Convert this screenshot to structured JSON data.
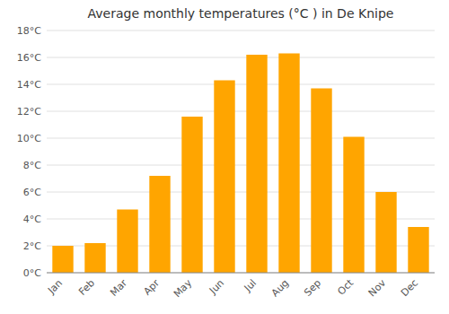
{
  "chart_data": {
    "type": "bar",
    "title": "Average monthly temperatures (°C ) in De Knipe",
    "categories": [
      "Jan",
      "Feb",
      "Mar",
      "Apr",
      "May",
      "Jun",
      "Jul",
      "Aug",
      "Sep",
      "Oct",
      "Nov",
      "Dec"
    ],
    "values": [
      2.0,
      2.2,
      4.7,
      7.2,
      11.6,
      14.3,
      16.2,
      16.3,
      13.7,
      10.1,
      6.0,
      3.4
    ],
    "color": "#FFA500",
    "ylim": [
      0,
      18
    ],
    "yticks": [
      {
        "value": 0,
        "label": "0°C"
      },
      {
        "value": 2,
        "label": "2°C"
      },
      {
        "value": 4,
        "label": "4°C"
      },
      {
        "value": 6,
        "label": "6°C"
      },
      {
        "value": 8,
        "label": "8°C"
      },
      {
        "value": 10,
        "label": "10°C"
      },
      {
        "value": 12,
        "label": "12°C"
      },
      {
        "value": 14,
        "label": "14°C"
      },
      {
        "value": 16,
        "label": "16°C"
      },
      {
        "value": 18,
        "label": "18°C"
      }
    ],
    "grid": true
  }
}
